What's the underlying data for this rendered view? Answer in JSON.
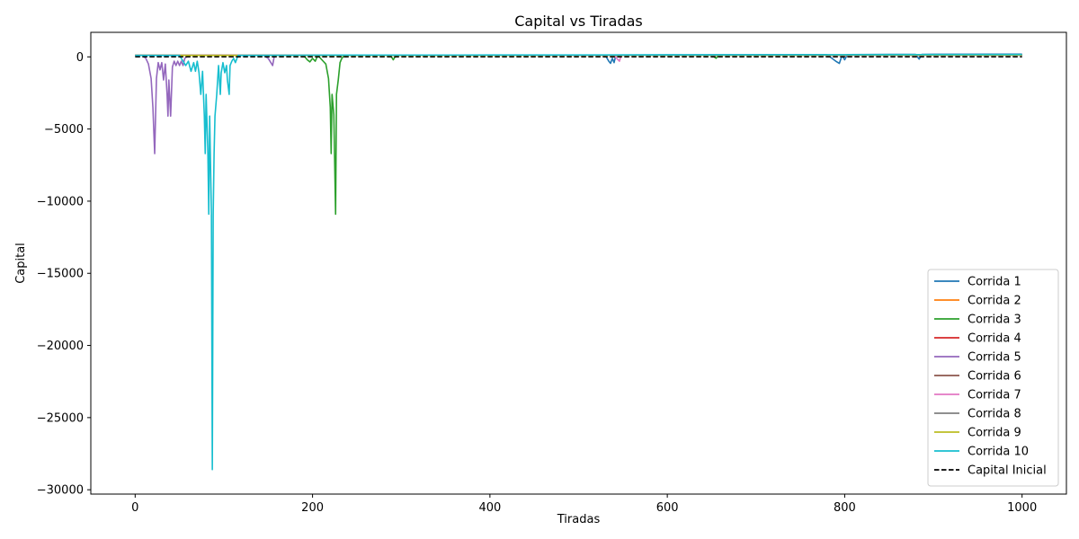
{
  "chart_data": {
    "type": "line",
    "title": "Capital vs Tiradas",
    "xlabel": "Tiradas",
    "ylabel": "Capital",
    "xlim": [
      -50,
      1050
    ],
    "ylim": [
      -30300,
      1700
    ],
    "xticks": [
      0,
      200,
      400,
      600,
      800,
      1000
    ],
    "xtick_labels": [
      "0",
      "200",
      "400",
      "600",
      "800",
      "1000"
    ],
    "yticks": [
      0,
      -5000,
      -10000,
      -15000,
      -20000,
      -25000,
      -30000
    ],
    "ytick_labels": [
      "0",
      "−5000",
      "−10000",
      "−15000",
      "−20000",
      "−25000",
      "−30000"
    ],
    "grid": false,
    "legend_position": "lower-right",
    "series": [
      {
        "name": "Corrida 1",
        "color": "#1f77b4",
        "style": "solid",
        "points": [
          [
            0,
            100
          ],
          [
            100,
            100
          ],
          [
            200,
            100
          ],
          [
            300,
            110
          ],
          [
            400,
            120
          ],
          [
            500,
            125
          ],
          [
            530,
            125
          ],
          [
            534,
            -300
          ],
          [
            536,
            -450
          ],
          [
            538,
            -100
          ],
          [
            540,
            -400
          ],
          [
            542,
            125
          ],
          [
            600,
            140
          ],
          [
            700,
            150
          ],
          [
            780,
            160
          ],
          [
            790,
            -300
          ],
          [
            794,
            -450
          ],
          [
            797,
            100
          ],
          [
            800,
            -200
          ],
          [
            803,
            160
          ],
          [
            850,
            170
          ],
          [
            880,
            170
          ],
          [
            884,
            -150
          ],
          [
            887,
            175
          ],
          [
            900,
            180
          ],
          [
            1000,
            190
          ]
        ]
      },
      {
        "name": "Corrida 2",
        "color": "#ff7f0e",
        "style": "solid",
        "points": [
          [
            0,
            100
          ],
          [
            200,
            110
          ],
          [
            400,
            115
          ],
          [
            600,
            120
          ],
          [
            800,
            125
          ],
          [
            1000,
            130
          ]
        ]
      },
      {
        "name": "Corrida 3",
        "color": "#2ca02c",
        "style": "solid",
        "points": [
          [
            0,
            100
          ],
          [
            190,
            100
          ],
          [
            194,
            -200
          ],
          [
            197,
            -350
          ],
          [
            200,
            -100
          ],
          [
            203,
            -300
          ],
          [
            206,
            100
          ],
          [
            209,
            -100
          ],
          [
            212,
            -300
          ],
          [
            215,
            -500
          ],
          [
            218,
            -1500
          ],
          [
            220,
            -3500
          ],
          [
            221,
            -6700
          ],
          [
            222,
            -2600
          ],
          [
            224,
            -4000
          ],
          [
            226,
            -10900
          ],
          [
            227,
            -2600
          ],
          [
            229,
            -1600
          ],
          [
            231,
            -400
          ],
          [
            233,
            -100
          ],
          [
            236,
            100
          ],
          [
            288,
            100
          ],
          [
            291,
            -200
          ],
          [
            294,
            100
          ],
          [
            400,
            110
          ],
          [
            600,
            120
          ],
          [
            650,
            125
          ],
          [
            655,
            -100
          ],
          [
            658,
            125
          ],
          [
            800,
            130
          ],
          [
            1000,
            140
          ]
        ]
      },
      {
        "name": "Corrida 4",
        "color": "#d62728",
        "style": "solid",
        "points": [
          [
            0,
            100
          ],
          [
            200,
            105
          ],
          [
            400,
            110
          ],
          [
            600,
            115
          ],
          [
            800,
            120
          ],
          [
            1000,
            125
          ]
        ]
      },
      {
        "name": "Corrida 5",
        "color": "#9467bd",
        "style": "solid",
        "points": [
          [
            0,
            100
          ],
          [
            8,
            100
          ],
          [
            12,
            -100
          ],
          [
            15,
            -500
          ],
          [
            18,
            -1500
          ],
          [
            20,
            -3500
          ],
          [
            22,
            -6700
          ],
          [
            24,
            -1500
          ],
          [
            26,
            -400
          ],
          [
            28,
            -900
          ],
          [
            30,
            -400
          ],
          [
            32,
            -1600
          ],
          [
            34,
            -500
          ],
          [
            36,
            -2600
          ],
          [
            37,
            -4100
          ],
          [
            38,
            -1600
          ],
          [
            40,
            -4100
          ],
          [
            42,
            -700
          ],
          [
            44,
            -300
          ],
          [
            46,
            -600
          ],
          [
            48,
            -300
          ],
          [
            50,
            -600
          ],
          [
            52,
            -300
          ],
          [
            54,
            -600
          ],
          [
            56,
            -100
          ],
          [
            60,
            100
          ],
          [
            145,
            100
          ],
          [
            150,
            -100
          ],
          [
            153,
            -400
          ],
          [
            155,
            -600
          ],
          [
            157,
            100
          ],
          [
            300,
            110
          ],
          [
            500,
            120
          ],
          [
            700,
            130
          ],
          [
            900,
            140
          ],
          [
            1000,
            145
          ]
        ]
      },
      {
        "name": "Corrida 6",
        "color": "#8c564b",
        "style": "solid",
        "points": [
          [
            0,
            100
          ],
          [
            200,
            105
          ],
          [
            400,
            110
          ],
          [
            600,
            115
          ],
          [
            800,
            120
          ],
          [
            1000,
            125
          ]
        ]
      },
      {
        "name": "Corrida 7",
        "color": "#e377c2",
        "style": "solid",
        "points": [
          [
            0,
            100
          ],
          [
            540,
            100
          ],
          [
            543,
            -100
          ],
          [
            546,
            -300
          ],
          [
            548,
            100
          ],
          [
            700,
            110
          ],
          [
            1000,
            120
          ]
        ]
      },
      {
        "name": "Corrida 8",
        "color": "#7f7f7f",
        "style": "solid",
        "points": [
          [
            0,
            100
          ],
          [
            200,
            105
          ],
          [
            400,
            110
          ],
          [
            600,
            115
          ],
          [
            800,
            120
          ],
          [
            1000,
            125
          ]
        ]
      },
      {
        "name": "Corrida 9",
        "color": "#bcbd22",
        "style": "solid",
        "points": [
          [
            0,
            100
          ],
          [
            200,
            105
          ],
          [
            400,
            110
          ],
          [
            600,
            115
          ],
          [
            800,
            120
          ],
          [
            1000,
            125
          ]
        ]
      },
      {
        "name": "Corrida 10",
        "color": "#17becf",
        "style": "solid",
        "points": [
          [
            0,
            100
          ],
          [
            50,
            100
          ],
          [
            54,
            -300
          ],
          [
            57,
            -600
          ],
          [
            60,
            -300
          ],
          [
            63,
            -1000
          ],
          [
            66,
            -400
          ],
          [
            68,
            -1000
          ],
          [
            70,
            -300
          ],
          [
            72,
            -1100
          ],
          [
            74,
            -2600
          ],
          [
            76,
            -1000
          ],
          [
            78,
            -4100
          ],
          [
            79,
            -6700
          ],
          [
            80,
            -2600
          ],
          [
            82,
            -6700
          ],
          [
            83,
            -10900
          ],
          [
            84,
            -4100
          ],
          [
            86,
            -10900
          ],
          [
            87,
            -28600
          ],
          [
            88,
            -10900
          ],
          [
            89,
            -6700
          ],
          [
            90,
            -4100
          ],
          [
            92,
            -2600
          ],
          [
            94,
            -600
          ],
          [
            96,
            -2600
          ],
          [
            97,
            -1100
          ],
          [
            99,
            -400
          ],
          [
            101,
            -1100
          ],
          [
            103,
            -600
          ],
          [
            104,
            -1600
          ],
          [
            106,
            -2600
          ],
          [
            107,
            -600
          ],
          [
            109,
            -300
          ],
          [
            111,
            -100
          ],
          [
            113,
            -400
          ],
          [
            116,
            100
          ],
          [
            200,
            120
          ],
          [
            400,
            130
          ],
          [
            600,
            140
          ],
          [
            800,
            150
          ],
          [
            1000,
            160
          ]
        ]
      },
      {
        "name": "Capital Inicial",
        "color": "#000000",
        "style": "dashed",
        "points": [
          [
            0,
            0
          ],
          [
            1000,
            0
          ]
        ]
      }
    ]
  }
}
